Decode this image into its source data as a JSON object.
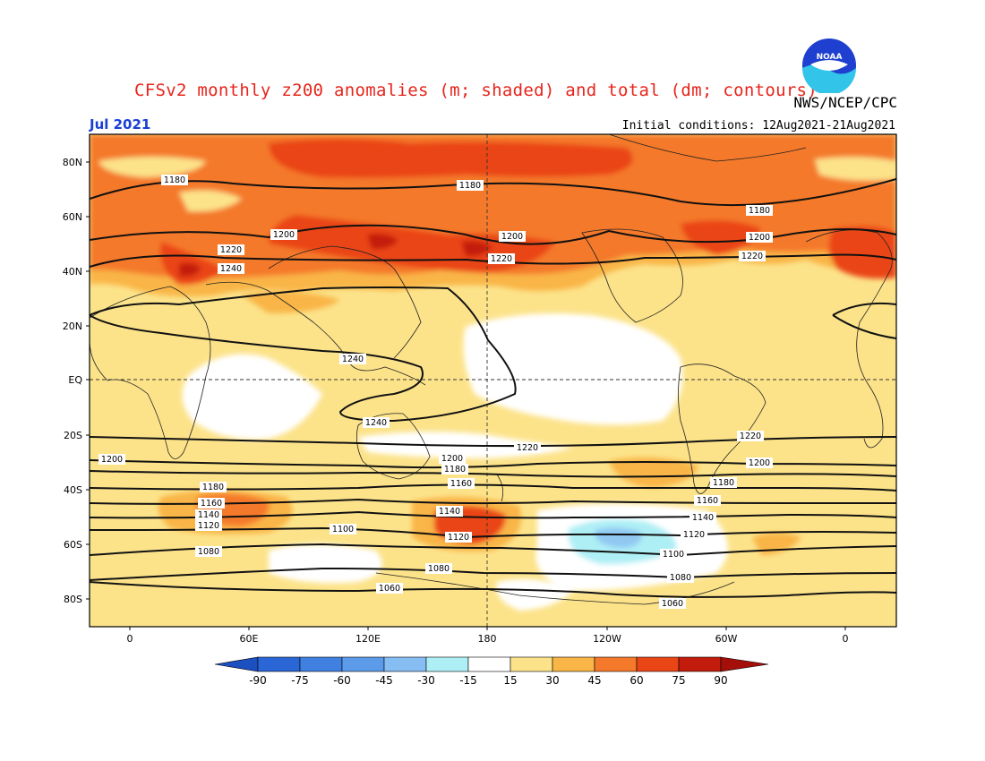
{
  "header": {
    "title": "CFSv2 monthly z200 anomalies (m; shaded) and total (dm; contours)",
    "agency": "NWS/NCEP/CPC",
    "month": "Jul 2021",
    "initial_conditions": "Initial conditions: 12Aug2021-21Aug2021",
    "logo_text": "NOAA"
  },
  "colors": {
    "title": "#e8241b",
    "month": "#1a3fd6",
    "pale_yellow": "#fce38a",
    "orange_light": "#f9b546",
    "orange": "#f4792a",
    "red_orange": "#ea4514",
    "red": "#c41c0c",
    "light_blue": "#aeeff5",
    "mid_blue": "#90c8f2",
    "contour": "#111111"
  },
  "axes": {
    "lat_labels": [
      "80N",
      "60N",
      "40N",
      "20N",
      "EQ",
      "20S",
      "40S",
      "60S",
      "80S"
    ],
    "lon_labels": [
      "0",
      "60E",
      "120E",
      "180",
      "120W",
      "60W",
      "0"
    ]
  },
  "colorbar": {
    "labels": [
      "-90",
      "-75",
      "-60",
      "-45",
      "-30",
      "-15",
      "15",
      "30",
      "45",
      "60",
      "75",
      "90"
    ],
    "colors": [
      "#2a66d6",
      "#3f80e0",
      "#5b9bea",
      "#86bdf2",
      "#aeeff5",
      "#ffffff",
      "#fce38a",
      "#f9b546",
      "#f4792a",
      "#ea4514",
      "#c41c0c"
    ],
    "end_low": "#1c4fc0",
    "end_high": "#a50f0a"
  },
  "contour_labels": {
    "c1180": "1180",
    "c1200": "1200",
    "c1220": "1220",
    "c1240": "1240",
    "c1160": "1160",
    "c1140": "1140",
    "c1120": "1120",
    "c1100": "1100",
    "c1080": "1080",
    "c1060": "1060"
  }
}
